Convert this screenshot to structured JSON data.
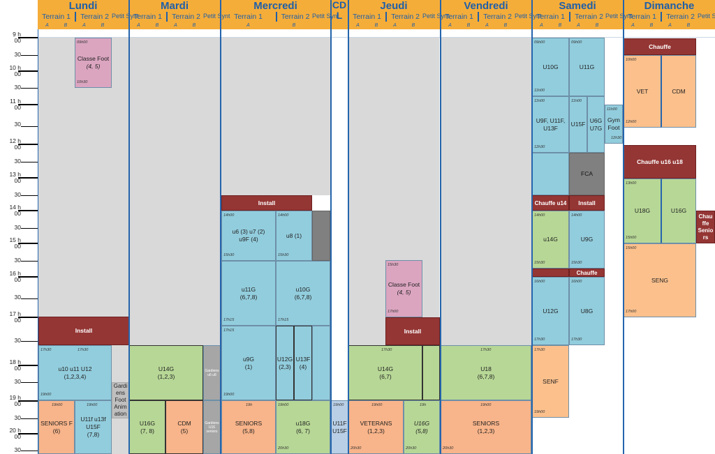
{
  "days": [
    {
      "name": "Lundi",
      "sub": [
        "Terrain 1",
        "Terrain 2",
        "Petit Synt"
      ]
    },
    {
      "name": "Mardi",
      "sub": [
        "Terrain 1",
        "Terrain 2",
        "Petit Synt"
      ]
    },
    {
      "name": "Mercredi",
      "sub": [
        "Terrain 1",
        "Terrain 2",
        "Petit Synt"
      ]
    },
    {
      "name": "CD L",
      "sub": []
    },
    {
      "name": "Jeudi",
      "sub": [
        "Terrain 1",
        "Terrain 2",
        "Petit Synt"
      ]
    },
    {
      "name": "Vendredi",
      "sub": [
        "Terrain 1",
        "Terrain 2",
        "Petit Synt"
      ]
    },
    {
      "name": "Samedi",
      "sub": [
        "Terrain 1",
        "Terrain 2",
        "Petit Synt"
      ]
    },
    {
      "name": "Dimanche",
      "sub": [
        "Terrain 1",
        "Terrain 2",
        "Petit Synt"
      ]
    }
  ],
  "ab": [
    "A",
    "B"
  ],
  "hours": [
    "9 h",
    "00",
    "30",
    "10 h",
    "00",
    "30",
    "11 h",
    "00",
    "30",
    "12 h",
    "00",
    "30",
    "13 h",
    "00",
    "30",
    "14 h",
    "00",
    "30",
    "15 h",
    "00",
    "30",
    "16 h",
    "00",
    "30",
    "17 h",
    "00",
    "30",
    "18 h",
    "00",
    "30",
    "19 h",
    "00",
    "30",
    "20 h",
    "00",
    "30"
  ],
  "events": [
    {
      "label": "Classe Foot",
      "sub": "(4, 5)",
      "t1": "09h00",
      "t2": "10h30"
    },
    {
      "label": "Install"
    },
    {
      "label": "u10 u11 U12",
      "sub": "(1,2,3,4)",
      "t1": "17h30",
      "t1b": "17h30",
      "t2": "19h00"
    },
    {
      "label": "Gardi ens Foot Anim ation"
    },
    {
      "label": "SENIORS F",
      "sub": "(6)",
      "t1": "19h00"
    },
    {
      "label": "U11f u13f U15F",
      "sub": "(7,8)",
      "t1": "19h00"
    },
    {
      "label": "U14G",
      "sub": "(1,2,3)"
    },
    {
      "label": "Gardiens u6 u8"
    },
    {
      "label": "U16G",
      "sub": "(7, 8)"
    },
    {
      "label": "CDM",
      "sub": "(5)"
    },
    {
      "label": "Gardiens U16 seniors"
    },
    {
      "label": "Install"
    },
    {
      "label": "u6 (3) u7 (2) u9F (4)",
      "t1": "14h00",
      "t2": "15h30"
    },
    {
      "label": "u8 (1)",
      "t1": "14h00",
      "t2": "15h30"
    },
    {
      "label": "u11G",
      "sub": "(6,7,8)",
      "t2": "17h15"
    },
    {
      "label": "u10G",
      "sub": "(6,7,8)",
      "t2": "17h15"
    },
    {
      "label": "u9G",
      "sub": "(1)",
      "t1": "17h15",
      "t2": "19h00"
    },
    {
      "label": "U12G",
      "sub": "(2,3)"
    },
    {
      "label": "U13F",
      "sub": "(4)"
    },
    {
      "label": "SENIORS",
      "sub": "(5,8)",
      "t1": "19h"
    },
    {
      "label": "u18G",
      "sub": "(6, 7)",
      "t1": "19h00",
      "t2": "20h30"
    },
    {
      "label": "U11F U15F",
      "t1": "19h00"
    },
    {
      "label": "Classe Foot",
      "sub": "(4, 5)",
      "t1": "15h30",
      "t2": "17h00"
    },
    {
      "label": "Install"
    },
    {
      "label": "U14G",
      "sub": "(6,7)",
      "t1": "17h30"
    },
    {
      "label": "VETERANS",
      "sub": "(1,2,3)",
      "t1": "19h00",
      "t2": "20h30"
    },
    {
      "label": "U16G",
      "sub": "(5,8)",
      "t1": "19h",
      "t2": "20h30"
    },
    {
      "label": "U18",
      "sub": "(6,7,8)",
      "t1": "17h30"
    },
    {
      "label": "SENIORS",
      "sub": "(1,2,3)",
      "t1": "19h00",
      "t2": "20h30"
    },
    {
      "label": "U10G",
      "t1": "09h00",
      "t2": "11h00"
    },
    {
      "label": "U11G",
      "t1": "09h00"
    },
    {
      "label": "U9F, U11F, U13F",
      "t1": "11h00",
      "t2": "12h30"
    },
    {
      "label": "U15F",
      "t1": "11h00"
    },
    {
      "label": "U6G U7G"
    },
    {
      "label": "Gym Foot",
      "t1": "11h00",
      "t2": "12h30"
    },
    {
      "label": "FCA"
    },
    {
      "label": "Chauffe u14"
    },
    {
      "label": "Install"
    },
    {
      "label": "u14G",
      "t1": "14h00",
      "t2": "15h30"
    },
    {
      "label": "U9G",
      "t1": "14h00",
      "t2": "15h30"
    },
    {
      "label": "Chauffe"
    },
    {
      "label": "U12G",
      "t1": "16h00",
      "t2": "17h30"
    },
    {
      "label": "U8G",
      "t1": "16h00",
      "t2": "17h30"
    },
    {
      "label": "SENF",
      "t1": "17h30",
      "t2": "19h00"
    },
    {
      "label": "Chauffe"
    },
    {
      "label": "VET",
      "t1": "10h00",
      "t2": "12h00"
    },
    {
      "label": "CDM"
    },
    {
      "label": "Chauffe u16 u18"
    },
    {
      "label": "U18G",
      "t1": "13h00",
      "t2": "15h00"
    },
    {
      "label": "U16G"
    },
    {
      "label": "Chau ffe Senio rs"
    },
    {
      "label": "SENG",
      "t1": "15h00",
      "t2": "17h00"
    }
  ]
}
